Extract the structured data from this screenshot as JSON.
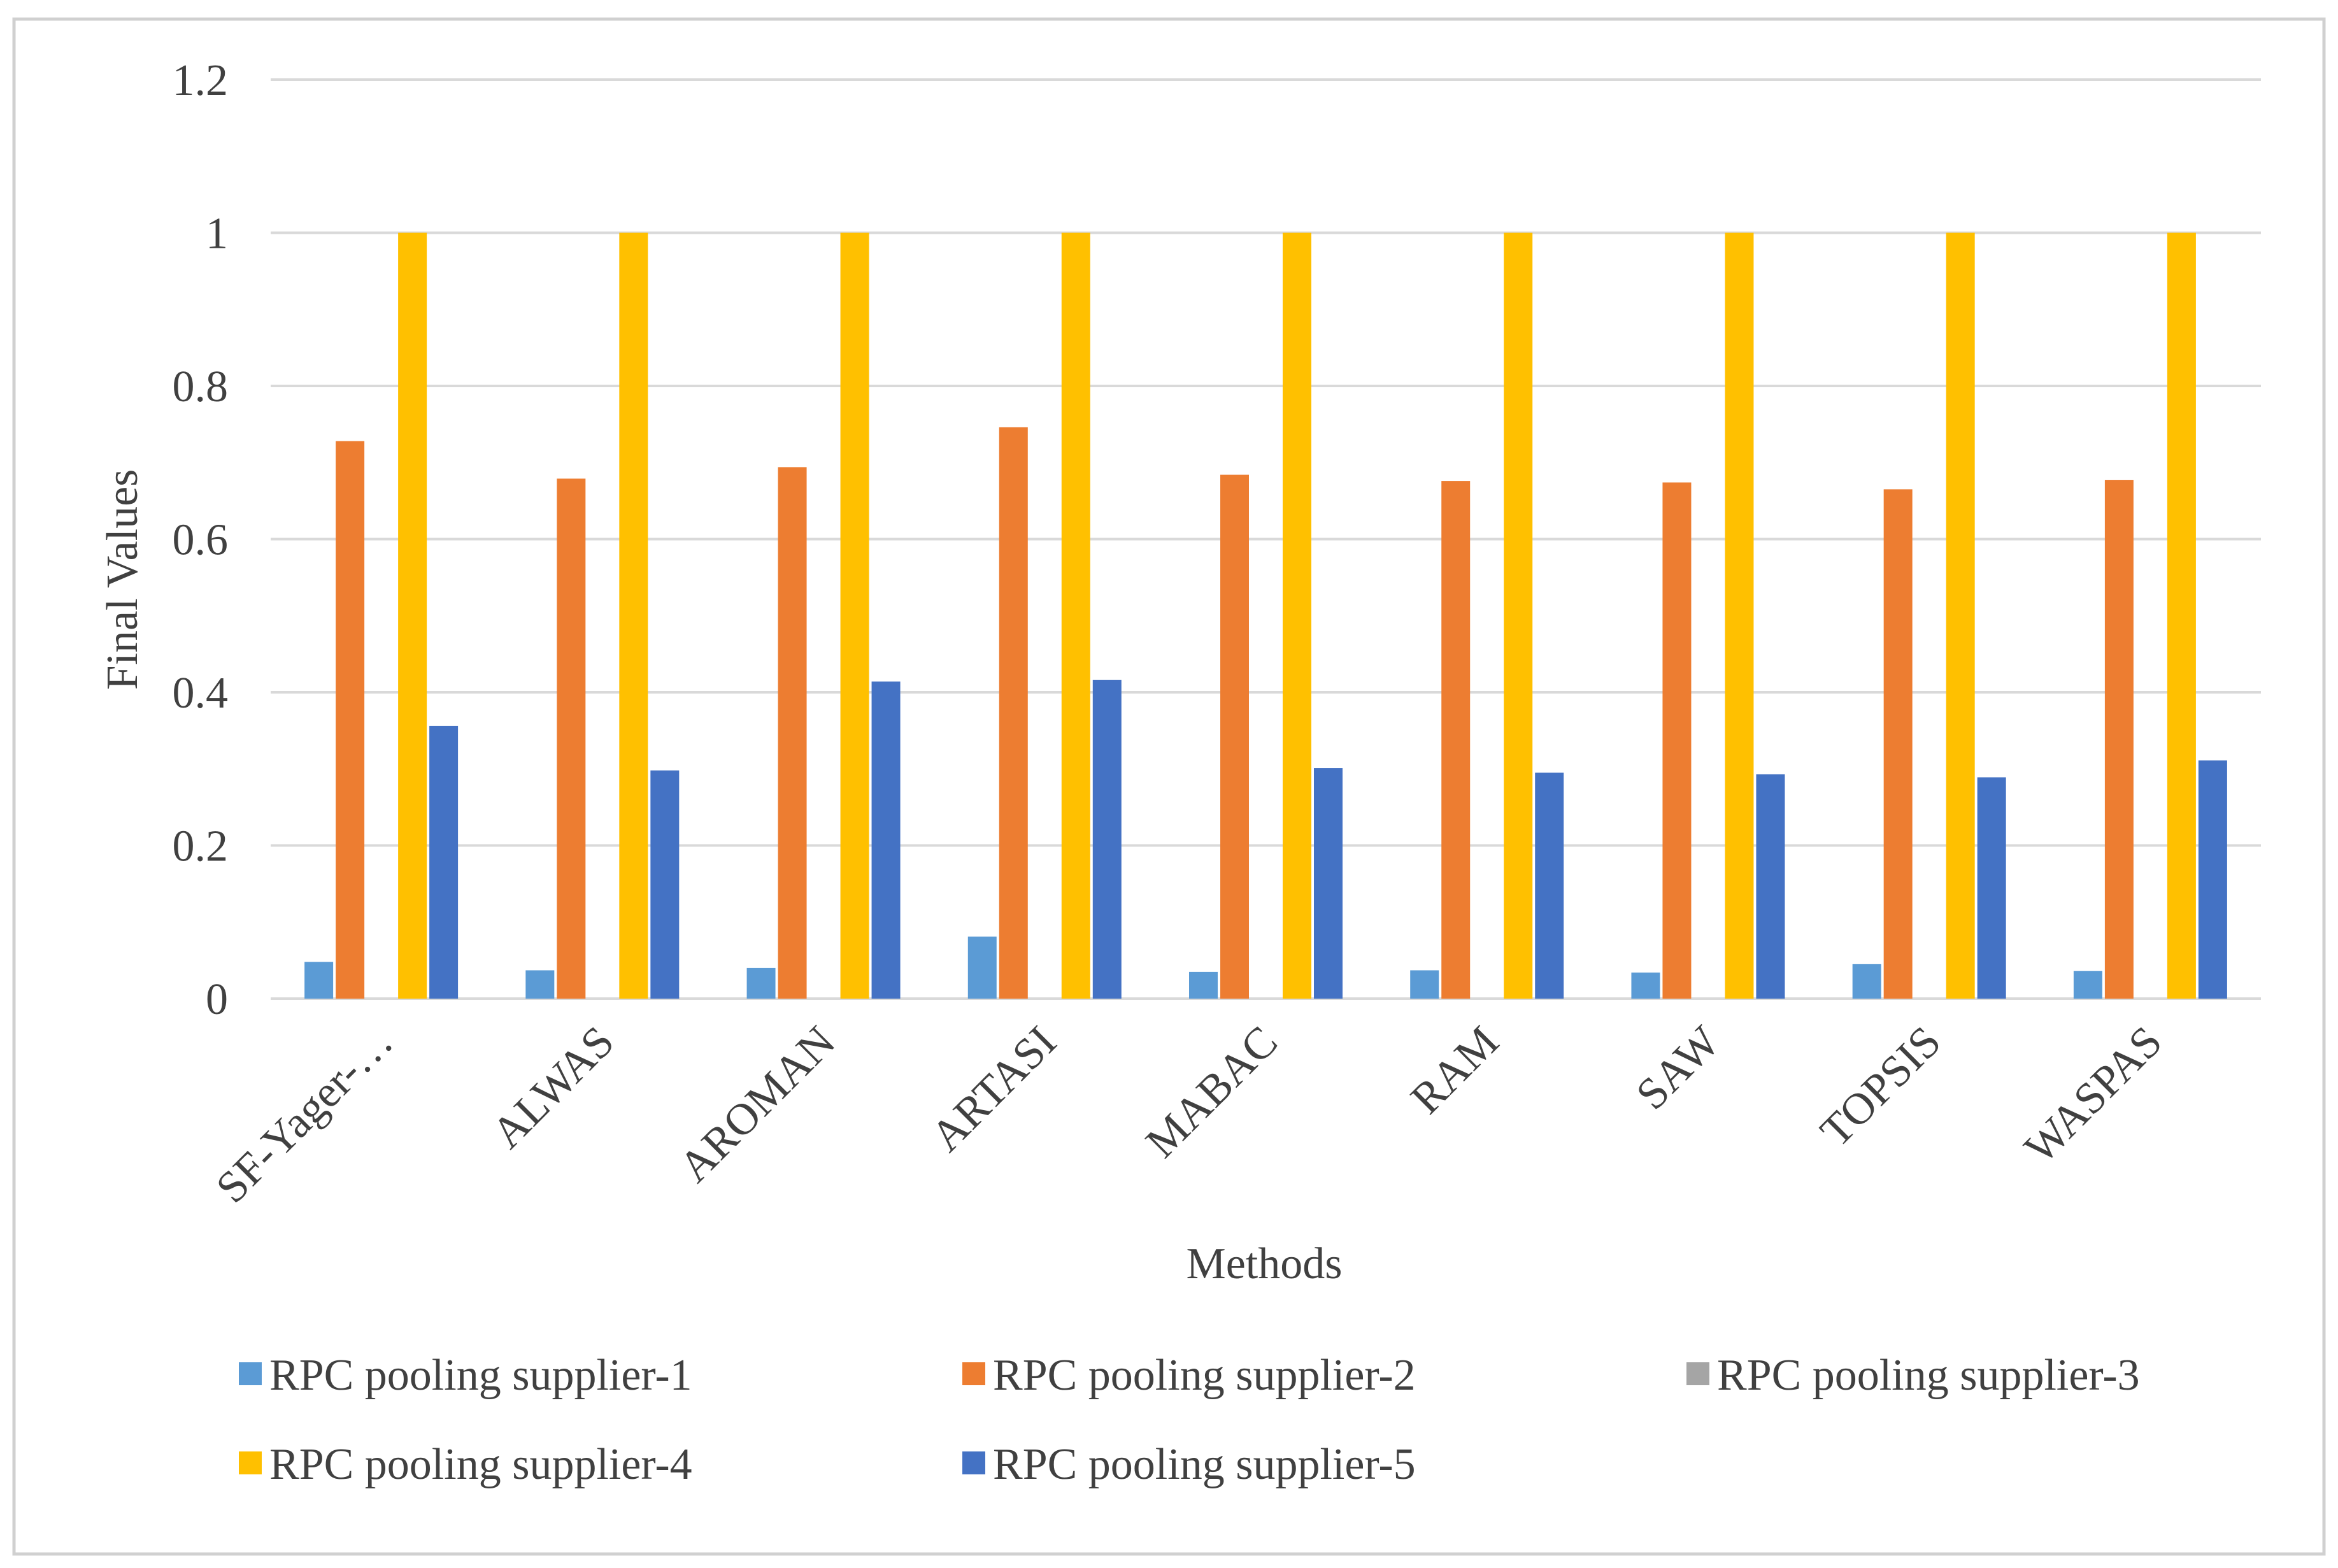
{
  "chart_data": {
    "type": "bar",
    "title": "",
    "xlabel": "Methods",
    "ylabel": "Final Values",
    "ylim": [
      0,
      1.2
    ],
    "yticks": [
      "0",
      "0.2",
      "0.4",
      "0.6",
      "0.8",
      "1",
      "1.2"
    ],
    "ytick_values": [
      0,
      0.2,
      0.4,
      0.6,
      0.8,
      1.0,
      1.2
    ],
    "grid": true,
    "legend_position": "bottom",
    "categories": [
      "SF-Yager-…",
      "ALWAS",
      "AROMAN",
      "ARTASI",
      "MABAC",
      "RAM",
      "SAW",
      "TOPSIS",
      "WASPAS"
    ],
    "series": [
      {
        "name": "RPC pooling supplier-1",
        "color": "#5B9BD5",
        "values": [
          0.048,
          0.037,
          0.04,
          0.081,
          0.035,
          0.037,
          0.034,
          0.045,
          0.036
        ]
      },
      {
        "name": "RPC pooling supplier-2",
        "color": "#ED7D31",
        "values": [
          0.728,
          0.679,
          0.694,
          0.746,
          0.684,
          0.676,
          0.674,
          0.665,
          0.677
        ]
      },
      {
        "name": "RPC pooling supplier-3",
        "color": "#A5A5A5",
        "values": [
          0,
          0,
          0,
          0,
          0,
          0,
          0,
          0,
          0
        ]
      },
      {
        "name": "RPC pooling supplier-4",
        "color": "#FFC000",
        "values": [
          1,
          1,
          1,
          1,
          1,
          1,
          1,
          1,
          1
        ]
      },
      {
        "name": "RPC pooling supplier-5",
        "color": "#4472C4",
        "values": [
          0.356,
          0.298,
          0.414,
          0.416,
          0.301,
          0.295,
          0.293,
          0.289,
          0.311
        ]
      }
    ]
  },
  "colors": {
    "grid": "#D9D9D9",
    "axis_text": "#404040",
    "frame": "#D0D0D0"
  }
}
